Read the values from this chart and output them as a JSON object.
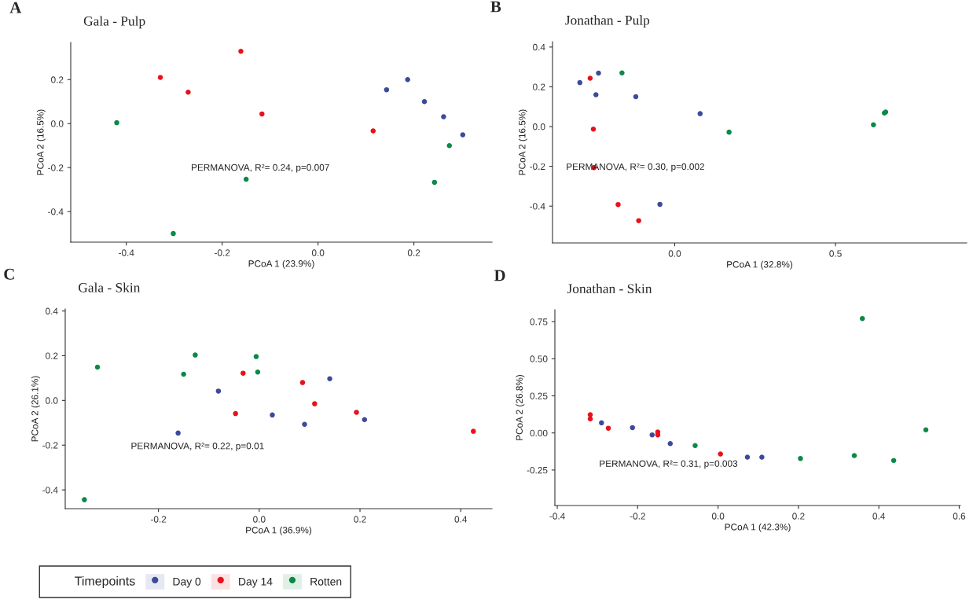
{
  "chart_data": [
    {
      "type": "scatter",
      "title": "Gala - Pulp",
      "xlabel": "PCoA 1 (23.9%)",
      "ylabel": "PCoA 2 (16.5%)",
      "annotations": [
        "A",
        "PERMANOVA, R²= 0.24, p=0.007"
      ],
      "legend": "bottom",
      "legend_title": "Timepoints",
      "marker": "circle",
      "grid": false,
      "xlim": [
        -0.516,
        0.363
      ],
      "ylim": [
        -0.539,
        0.369
      ],
      "xticks": [
        {
          "value": -0.4,
          "label": "-0.4"
        },
        {
          "value": -0.2,
          "label": "-0.2"
        },
        {
          "value": 0.0,
          "label": "0.0"
        },
        {
          "value": 0.2,
          "label": "0.2"
        }
      ],
      "yticks": [
        {
          "value": -0.4,
          "label": "-0.4"
        },
        {
          "value": -0.2,
          "label": "-0.2"
        },
        {
          "value": 0.0,
          "label": "0.0"
        },
        {
          "value": 0.2,
          "label": "0.2"
        }
      ],
      "series": [
        {
          "name": "Day 0",
          "color": "#3b4a9a",
          "x": [
            0.143,
            0.187,
            0.222,
            0.262,
            0.302
          ],
          "values": [
            0.154,
            0.2,
            0.1,
            0.031,
            -0.051
          ]
        },
        {
          "name": "Day 14",
          "color": "#e8111b",
          "x": [
            -0.161,
            -0.329,
            -0.271,
            -0.117,
            0.115
          ],
          "values": [
            0.329,
            0.21,
            0.143,
            0.044,
            -0.033
          ]
        },
        {
          "name": "Rotten",
          "color": "#0a8a45",
          "x": [
            -0.42,
            -0.15,
            -0.302,
            0.274,
            0.243
          ],
          "values": [
            0.004,
            -0.253,
            -0.5,
            -0.1,
            -0.267
          ]
        }
      ]
    },
    {
      "type": "scatter",
      "title": "Jonathan - Pulp",
      "xlabel": "PCoA 1 (32.8%)",
      "ylabel": "PCoA 2 (16.5%)",
      "annotations": [
        "B",
        "PERMANOVA, R²= 0.30, p=0.002"
      ],
      "marker": "circle",
      "grid": false,
      "xlim": [
        -0.38,
        0.908
      ],
      "ylim": [
        -0.585,
        0.427
      ],
      "xticks": [
        {
          "value": 0.0,
          "label": "0.0"
        },
        {
          "value": 0.5,
          "label": "0.5"
        }
      ],
      "yticks": [
        {
          "value": -0.4,
          "label": "-0.4"
        },
        {
          "value": -0.2,
          "label": "-0.2"
        },
        {
          "value": 0.0,
          "label": "0.0"
        },
        {
          "value": 0.2,
          "label": "0.2"
        },
        {
          "value": 0.4,
          "label": "0.4"
        }
      ],
      "series": [
        {
          "color": "#3b4a9a",
          "x": [
            -0.295,
            -0.237,
            -0.245,
            -0.121,
            0.079,
            -0.046
          ],
          "values": [
            0.221,
            0.269,
            0.16,
            0.15,
            0.065,
            -0.391
          ]
        },
        {
          "color": "#e8111b",
          "x": [
            -0.263,
            -0.253,
            -0.251,
            -0.176,
            -0.112
          ],
          "values": [
            0.243,
            -0.013,
            -0.206,
            -0.392,
            -0.473
          ]
        },
        {
          "color": "#0a8a45",
          "x": [
            -0.164,
            0.169,
            0.618,
            0.652,
            0.656
          ],
          "values": [
            0.27,
            -0.028,
            0.009,
            0.068,
            0.073
          ]
        }
      ]
    },
    {
      "type": "scatter",
      "title": "Gala - Skin",
      "xlabel": "PCoA 1 (36.9%)",
      "ylabel": "PCoA 2 (26.1%)",
      "annotations": [
        "C",
        "PERMANOVA, R²= 0.22, p=0.01"
      ],
      "marker": "circle",
      "grid": false,
      "xlim": [
        -0.385,
        0.462
      ],
      "ylim": [
        -0.484,
        0.409
      ],
      "xticks": [
        {
          "value": -0.2,
          "label": "-0.2"
        },
        {
          "value": 0.0,
          "label": "0.0"
        },
        {
          "value": 0.2,
          "label": "0.2"
        },
        {
          "value": 0.4,
          "label": "0.4"
        }
      ],
      "yticks": [
        {
          "value": -0.4,
          "label": "-0.4"
        },
        {
          "value": -0.2,
          "label": "-0.2"
        },
        {
          "value": 0.0,
          "label": "0.0"
        },
        {
          "value": 0.2,
          "label": "0.2"
        },
        {
          "value": 0.4,
          "label": "0.4"
        }
      ],
      "series": [
        {
          "color": "#3b4a9a",
          "x": [
            -0.081,
            0.14,
            0.026,
            0.09,
            0.209,
            -0.161
          ],
          "values": [
            0.042,
            0.097,
            -0.065,
            -0.107,
            -0.086,
            -0.146
          ]
        },
        {
          "color": "#e8111b",
          "x": [
            -0.032,
            0.086,
            0.11,
            -0.047,
            0.193,
            0.425
          ],
          "values": [
            0.122,
            0.08,
            -0.015,
            -0.059,
            -0.053,
            -0.138
          ]
        },
        {
          "color": "#0a8a45",
          "x": [
            -0.321,
            -0.127,
            -0.15,
            -0.006,
            -0.003,
            -0.347
          ],
          "values": [
            0.149,
            0.203,
            0.117,
            0.196,
            0.127,
            -0.444
          ]
        }
      ]
    },
    {
      "type": "scatter",
      "title": "Jonathan - Skin",
      "xlabel": "PCoA 1 (42.3%)",
      "ylabel": "PCoA 2 (26.8%)",
      "annotations": [
        "D",
        "PERMANOVA, R²= 0.31, p=0.003"
      ],
      "marker": "circle",
      "grid": false,
      "xlim": [
        -0.406,
        0.603
      ],
      "ylim": [
        -0.489,
        0.83
      ],
      "xticks": [
        {
          "value": -0.4,
          "label": "-0.4"
        },
        {
          "value": -0.2,
          "label": "-0.2"
        },
        {
          "value": 0.0,
          "label": "0.0"
        },
        {
          "value": 0.2,
          "label": "0.2"
        },
        {
          "value": 0.4,
          "label": "0.4"
        },
        {
          "value": 0.6,
          "label": "0.6"
        }
      ],
      "yticks": [
        {
          "value": -0.25,
          "label": "-0.25"
        },
        {
          "value": 0.0,
          "label": "0.00"
        },
        {
          "value": 0.25,
          "label": "0.25"
        },
        {
          "value": 0.5,
          "label": "0.50"
        },
        {
          "value": 0.75,
          "label": "0.75"
        }
      ],
      "series": [
        {
          "color": "#3b4a9a",
          "x": [
            -0.29,
            -0.213,
            -0.164,
            -0.119,
            0.073,
            0.109
          ],
          "values": [
            0.068,
            0.036,
            -0.013,
            -0.072,
            -0.163,
            -0.163
          ]
        },
        {
          "color": "#e8111b",
          "x": [
            -0.318,
            -0.318,
            -0.273,
            -0.15,
            -0.15,
            0.006
          ],
          "values": [
            0.123,
            0.095,
            0.032,
            0.006,
            -0.013,
            -0.142
          ]
        },
        {
          "color": "#0a8a45",
          "x": [
            0.359,
            0.517,
            0.205,
            0.339,
            0.437,
            -0.057
          ],
          "values": [
            0.771,
            0.021,
            -0.172,
            -0.153,
            -0.186,
            -0.085
          ]
        }
      ]
    }
  ]
}
